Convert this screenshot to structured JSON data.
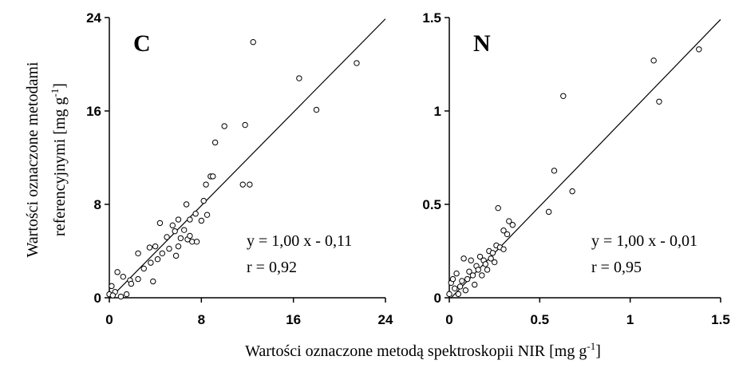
{
  "chart_data": [
    {
      "type": "scatter",
      "label": "C",
      "equation": "y = 1,00 x - 0,11",
      "r_text": "r = 0,92",
      "fit": {
        "slope": 1.0,
        "intercept": -0.11
      },
      "x": [
        0,
        0.2,
        0.5,
        0.3,
        0.7,
        1,
        1.2,
        1.5,
        1.8,
        1.9,
        2.5,
        2.5,
        3,
        3.5,
        3.6,
        3.8,
        4,
        4.2,
        4.4,
        4.6,
        5,
        5.2,
        5.5,
        5.7,
        5.8,
        6,
        6,
        6.2,
        6.5,
        6.7,
        6.8,
        7,
        7,
        7.2,
        7.5,
        7.6,
        8,
        8.2,
        8.4,
        8.5,
        8.8,
        9,
        9.2,
        10,
        11.6,
        11.8,
        12.2,
        12.5,
        16.5,
        18,
        21.5
      ],
      "y": [
        0.3,
        1,
        0.5,
        0.2,
        2.2,
        0.1,
        1.8,
        0.3,
        1.5,
        1.2,
        3.8,
        1.6,
        2.5,
        4.3,
        3,
        1.4,
        4.4,
        3.3,
        6.4,
        3.8,
        5.2,
        4.2,
        6.2,
        5.7,
        3.6,
        6.7,
        4.4,
        5.1,
        5.8,
        8,
        5,
        6.7,
        5.3,
        4.8,
        7.2,
        4.8,
        6.6,
        8.3,
        9.7,
        7.1,
        10.4,
        10.4,
        13.3,
        14.7,
        9.7,
        14.8,
        9.7,
        21.9,
        18.8,
        16.1,
        20.1
      ],
      "xlim": [
        0,
        24
      ],
      "ylim": [
        0,
        24
      ],
      "xticks": [
        0,
        8,
        16,
        24
      ],
      "yticks": [
        0,
        8,
        16,
        24
      ]
    },
    {
      "type": "scatter",
      "label": "N",
      "equation": "y = 1,00 x - 0,01",
      "r_text": "r = 0,95",
      "fit": {
        "slope": 1.0,
        "intercept": -0.01
      },
      "x": [
        0,
        0.01,
        0.02,
        0.03,
        0.04,
        0.05,
        0.06,
        0.07,
        0.08,
        0.09,
        0.1,
        0.11,
        0.12,
        0.13,
        0.14,
        0.15,
        0.16,
        0.17,
        0.18,
        0.19,
        0.2,
        0.21,
        0.22,
        0.23,
        0.24,
        0.25,
        0.26,
        0.27,
        0.28,
        0.3,
        0.3,
        0.32,
        0.33,
        0.35,
        0.55,
        0.58,
        0.63,
        0.68,
        1.13,
        1.16,
        1.38
      ],
      "y": [
        0.02,
        0.08,
        0.1,
        0.05,
        0.13,
        0.02,
        0.06,
        0.09,
        0.21,
        0.04,
        0.1,
        0.14,
        0.2,
        0.12,
        0.07,
        0.17,
        0.15,
        0.22,
        0.12,
        0.2,
        0.18,
        0.15,
        0.25,
        0.21,
        0.24,
        0.19,
        0.28,
        0.48,
        0.27,
        0.36,
        0.26,
        0.34,
        0.41,
        0.39,
        0.46,
        0.68,
        1.08,
        0.57,
        1.27,
        1.05,
        1.33
      ],
      "xlim": [
        0,
        1.5
      ],
      "ylim": [
        0,
        1.5
      ],
      "xticks": [
        0,
        0.5,
        1,
        1.5
      ],
      "yticks": [
        0,
        0.5,
        1,
        1.5
      ]
    }
  ],
  "xlabel": [
    "Wartości oznaczone metodą spektroskopii NIR [mg g",
    "-1",
    "]"
  ],
  "ylabel": [
    "Wartości oznaczone metodami",
    "referencyjnymi [mg g",
    "-1",
    "]"
  ]
}
